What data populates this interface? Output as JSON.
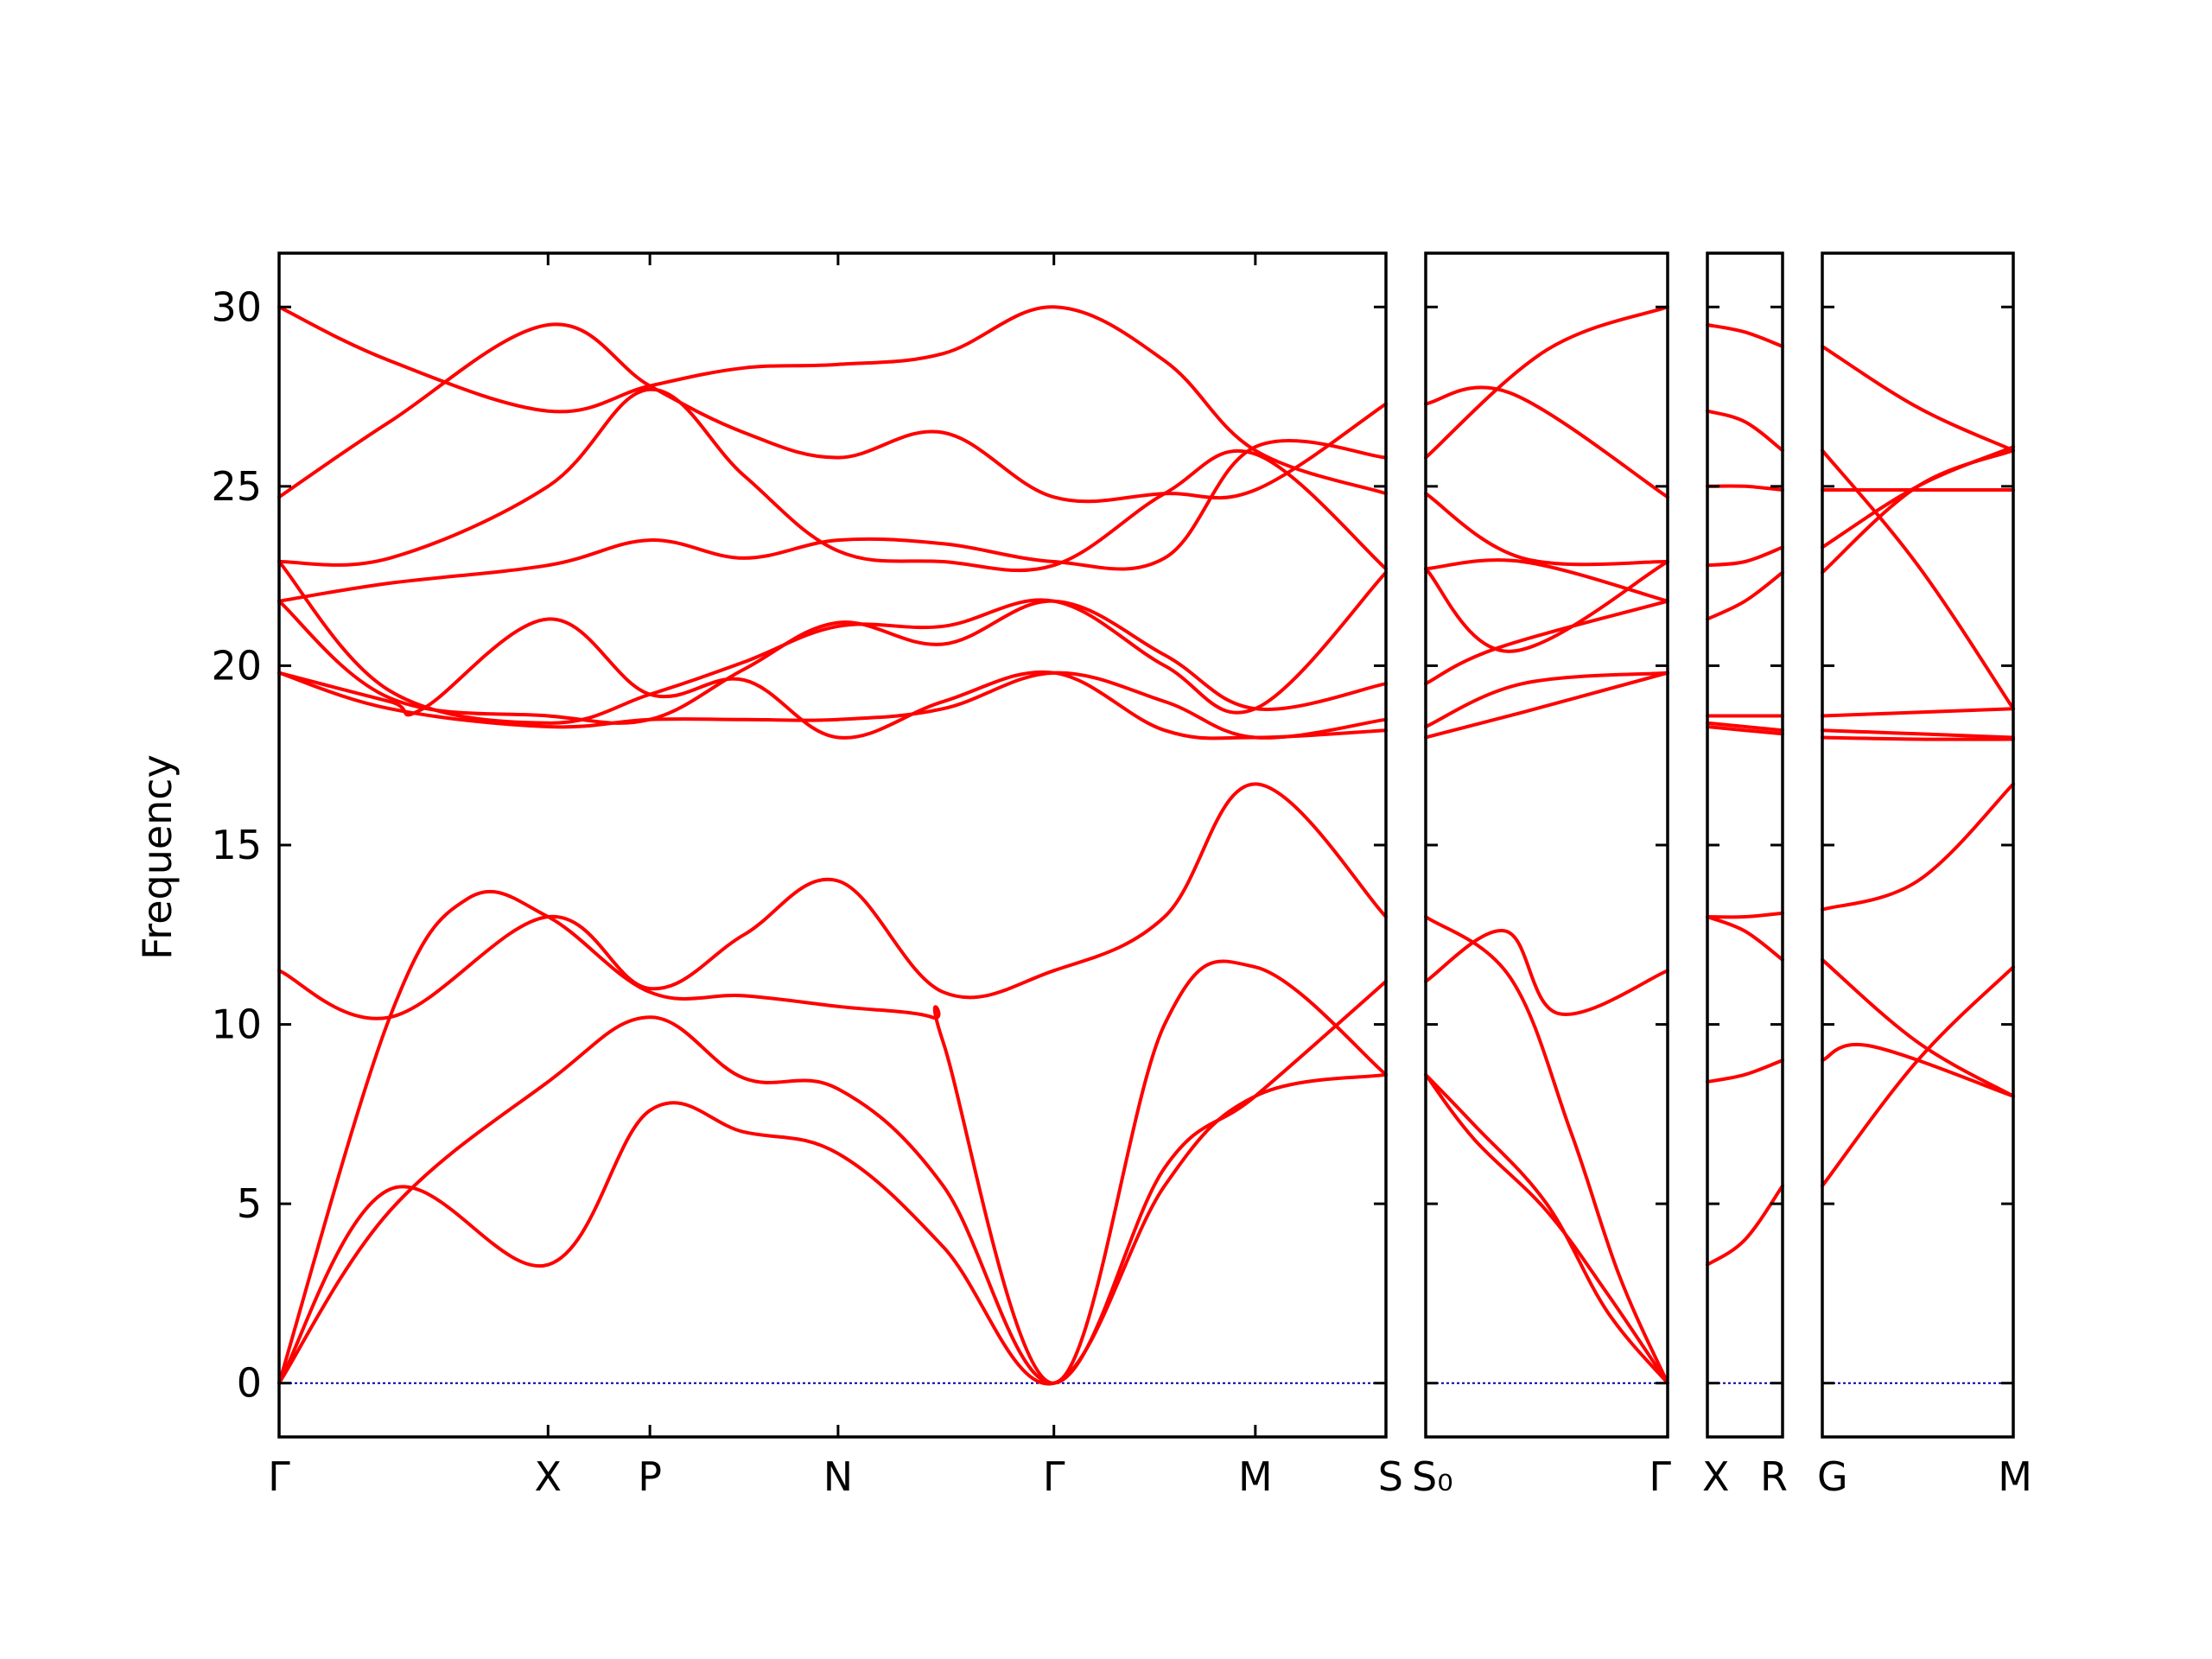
{
  "chart_data": {
    "type": "line",
    "title": "",
    "ylabel": "Frequency",
    "ylim": [
      -1.5,
      31.5
    ],
    "yticks": [
      0,
      5,
      10,
      15,
      20,
      25,
      30
    ],
    "colors": {
      "bands": "#ff0000",
      "zero": "#0000aa",
      "frame": "#000000"
    },
    "panels": [
      {
        "name": "Γ-X-P-N-Γ-M-S",
        "xlim": [
          0,
          1
        ],
        "xticks": [
          {
            "x": 0.0,
            "label": "Γ"
          },
          {
            "x": 0.243,
            "label": "X"
          },
          {
            "x": 0.335,
            "label": "P"
          },
          {
            "x": 0.505,
            "label": "N"
          },
          {
            "x": 0.7,
            "label": "Γ"
          },
          {
            "x": 0.882,
            "label": "M"
          },
          {
            "x": 1.0,
            "label": "S"
          }
        ],
        "series": [
          {
            "x": [
              0,
              0.1,
              0.243,
              0.335,
              0.42,
              0.505,
              0.6,
              0.7,
              0.8,
              0.882,
              1.0
            ],
            "y": [
              0,
              5.4,
              3.3,
              7.6,
              7.0,
              6.4,
              3.8,
              0,
              5.5,
              8.0,
              8.6
            ]
          },
          {
            "x": [
              0,
              0.1,
              0.243,
              0.335,
              0.42,
              0.505,
              0.6,
              0.7,
              0.8,
              0.882,
              1.0
            ],
            "y": [
              0,
              4.8,
              8.4,
              10.2,
              8.5,
              8.2,
              5.5,
              0,
              6.0,
              8.0,
              11.2
            ]
          },
          {
            "x": [
              0,
              0.1,
              0.17,
              0.243,
              0.335,
              0.42,
              0.505,
              0.59,
              0.6,
              0.7,
              0.8,
              0.882,
              1.0
            ],
            "y": [
              0,
              10.2,
              13.5,
              13.0,
              10.9,
              10.8,
              10.5,
              10.2,
              9.5,
              0,
              10.0,
              11.6,
              8.6
            ]
          },
          {
            "x": [
              0,
              0.1,
              0.243,
              0.335,
              0.42,
              0.505,
              0.6,
              0.7,
              0.8,
              0.882,
              1.0
            ],
            "y": [
              11.5,
              10.2,
              13.0,
              11.0,
              12.5,
              14.0,
              10.9,
              11.5,
              13.0,
              16.7,
              13.0
            ]
          },
          {
            "x": [
              0,
              0.1,
              0.13,
              0.243,
              0.335,
              0.42,
              0.505,
              0.6,
              0.7,
              0.8,
              0.882,
              1.0
            ],
            "y": [
              19.8,
              19.0,
              18.8,
              21.3,
              19.2,
              19.6,
              18.0,
              19.0,
              19.8,
              18.2,
              18.0,
              18.2
            ]
          },
          {
            "x": [
              0,
              0.1,
              0.243,
              0.335,
              0.42,
              0.505,
              0.6,
              0.7,
              0.8,
              0.882,
              1.0
            ],
            "y": [
              19.8,
              18.8,
              18.3,
              18.5,
              18.5,
              18.5,
              18.8,
              19.8,
              19.0,
              18.0,
              18.5
            ]
          },
          {
            "x": [
              0,
              0.1,
              0.243,
              0.335,
              0.42,
              0.505,
              0.6,
              0.7,
              0.8,
              0.882,
              1.0
            ],
            "y": [
              21.8,
              19.1,
              18.6,
              18.5,
              19.9,
              21.2,
              20.6,
              21.8,
              20.3,
              18.8,
              19.5
            ]
          },
          {
            "x": [
              0,
              0.1,
              0.243,
              0.335,
              0.42,
              0.505,
              0.6,
              0.7,
              0.8,
              0.882,
              1.0
            ],
            "y": [
              22.9,
              19.3,
              18.4,
              19.2,
              20.1,
              21.1,
              21.1,
              21.8,
              20.0,
              18.8,
              22.6
            ]
          },
          {
            "x": [
              0,
              0.1,
              0.243,
              0.335,
              0.42,
              0.505,
              0.6,
              0.7,
              0.8,
              0.882,
              1.0
            ],
            "y": [
              21.8,
              22.3,
              22.8,
              23.5,
              23.0,
              23.5,
              23.4,
              22.9,
              23.0,
              26.1,
              25.8
            ]
          },
          {
            "x": [
              0,
              0.1,
              0.243,
              0.335,
              0.42,
              0.505,
              0.6,
              0.7,
              0.8,
              0.882,
              1.0
            ],
            "y": [
              22.9,
              23.0,
              25.0,
              27.7,
              25.3,
              23.2,
              22.9,
              22.8,
              24.8,
              25.9,
              22.7
            ]
          },
          {
            "x": [
              0,
              0.1,
              0.243,
              0.335,
              0.42,
              0.505,
              0.6,
              0.7,
              0.8,
              0.882,
              1.0
            ],
            "y": [
              24.7,
              26.8,
              29.5,
              27.8,
              26.5,
              25.8,
              26.5,
              24.7,
              24.8,
              24.9,
              27.3
            ]
          },
          {
            "x": [
              0,
              0.1,
              0.243,
              0.335,
              0.42,
              0.505,
              0.6,
              0.7,
              0.8,
              0.882,
              1.0
            ],
            "y": [
              30.0,
              28.5,
              27.1,
              27.8,
              28.3,
              28.4,
              28.7,
              30.0,
              28.5,
              26.0,
              24.8
            ]
          }
        ]
      },
      {
        "name": "S0-Γ",
        "xlim": [
          0,
          1
        ],
        "xticks": [
          {
            "x": 0.0,
            "label": "S₀"
          },
          {
            "x": 1.0,
            "label": "Γ"
          }
        ],
        "series": [
          {
            "x": [
              0,
              0.2,
              0.5,
              0.75,
              1
            ],
            "y": [
              8.6,
              6.8,
              4.8,
              2.5,
              0
            ]
          },
          {
            "x": [
              0,
              0.2,
              0.5,
              0.75,
              1
            ],
            "y": [
              8.6,
              7.2,
              5.0,
              2.0,
              0
            ]
          },
          {
            "x": [
              0,
              0.35,
              0.6,
              0.8,
              1
            ],
            "y": [
              13.0,
              11.3,
              7.0,
              3.0,
              0
            ]
          },
          {
            "x": [
              0,
              0.33,
              0.55,
              1
            ],
            "y": [
              11.2,
              12.6,
              10.3,
              11.5
            ]
          },
          {
            "x": [
              0,
              0.4,
              1
            ],
            "y": [
              18.0,
              18.7,
              19.8
            ]
          },
          {
            "x": [
              0,
              0.4,
              1
            ],
            "y": [
              18.3,
              19.5,
              19.8
            ]
          },
          {
            "x": [
              0,
              0.3,
              1
            ],
            "y": [
              19.5,
              20.5,
              21.8
            ]
          },
          {
            "x": [
              0,
              0.35,
              1
            ],
            "y": [
              22.7,
              20.4,
              22.9
            ]
          },
          {
            "x": [
              0,
              0.4,
              1
            ],
            "y": [
              22.7,
              22.9,
              21.8
            ]
          },
          {
            "x": [
              0,
              0.4,
              1
            ],
            "y": [
              24.8,
              23.0,
              22.9
            ]
          },
          {
            "x": [
              0,
              0.35,
              1
            ],
            "y": [
              27.3,
              27.6,
              24.7
            ]
          },
          {
            "x": [
              0,
              0.5,
              1
            ],
            "y": [
              25.8,
              28.8,
              30.0
            ]
          }
        ]
      },
      {
        "name": "X-R",
        "xlim": [
          0,
          1
        ],
        "xticks": [
          {
            "x": 0.0,
            "label": "X"
          },
          {
            "x": 1.0,
            "label": "R"
          }
        ],
        "series": [
          {
            "x": [
              0,
              0.5,
              1
            ],
            "y": [
              3.3,
              4.0,
              5.5
            ]
          },
          {
            "x": [
              0,
              0.5,
              1
            ],
            "y": [
              8.4,
              8.6,
              9.0
            ]
          },
          {
            "x": [
              0,
              0.5,
              1
            ],
            "y": [
              13.0,
              13.0,
              13.1
            ]
          },
          {
            "x": [
              0,
              0.5,
              1
            ],
            "y": [
              13.0,
              12.6,
              11.8
            ]
          },
          {
            "x": [
              0,
              0.5,
              1
            ],
            "y": [
              18.3,
              18.2,
              18.1
            ]
          },
          {
            "x": [
              0,
              0.5,
              1
            ],
            "y": [
              18.4,
              18.3,
              18.2
            ]
          },
          {
            "x": [
              0,
              0.5,
              1
            ],
            "y": [
              18.6,
              18.6,
              18.6
            ]
          },
          {
            "x": [
              0,
              0.5,
              1
            ],
            "y": [
              21.3,
              21.8,
              22.6
            ]
          },
          {
            "x": [
              0,
              0.5,
              1
            ],
            "y": [
              22.8,
              22.9,
              23.3
            ]
          },
          {
            "x": [
              0,
              0.5,
              1
            ],
            "y": [
              25.0,
              25.0,
              24.9
            ]
          },
          {
            "x": [
              0,
              0.5,
              1
            ],
            "y": [
              27.1,
              26.8,
              26.0
            ]
          },
          {
            "x": [
              0,
              0.5,
              1
            ],
            "y": [
              29.5,
              29.3,
              28.9
            ]
          }
        ]
      },
      {
        "name": "G-M",
        "xlim": [
          0,
          1
        ],
        "xticks": [
          {
            "x": 0.0,
            "label": "G"
          },
          {
            "x": 1.0,
            "label": "M"
          }
        ],
        "series": [
          {
            "x": [
              0,
              0.5,
              1
            ],
            "y": [
              5.5,
              9.0,
              11.6
            ]
          },
          {
            "x": [
              0,
              0.25,
              1
            ],
            "y": [
              9.0,
              9.4,
              8.0
            ]
          },
          {
            "x": [
              0,
              0.5,
              1
            ],
            "y": [
              11.8,
              9.5,
              8.0
            ]
          },
          {
            "x": [
              0,
              0.5,
              1
            ],
            "y": [
              13.2,
              14.0,
              16.7
            ]
          },
          {
            "x": [
              0,
              0.5,
              1
            ],
            "y": [
              18.0,
              17.95,
              17.95
            ]
          },
          {
            "x": [
              0,
              0.5,
              1
            ],
            "y": [
              18.2,
              18.1,
              18.0
            ]
          },
          {
            "x": [
              0,
              0.5,
              1
            ],
            "y": [
              18.6,
              18.7,
              18.8
            ]
          },
          {
            "x": [
              0,
              0.5,
              1
            ],
            "y": [
              22.6,
              25.0,
              26.0
            ]
          },
          {
            "x": [
              0,
              0.5,
              1
            ],
            "y": [
              23.3,
              25.0,
              26.1
            ]
          },
          {
            "x": [
              0,
              0.5,
              1
            ],
            "y": [
              24.9,
              24.9,
              24.9
            ]
          },
          {
            "x": [
              0,
              0.5,
              1
            ],
            "y": [
              26.0,
              22.8,
              18.8
            ]
          },
          {
            "x": [
              0,
              0.5,
              1
            ],
            "y": [
              28.9,
              27.2,
              26.0
            ]
          }
        ]
      }
    ]
  }
}
